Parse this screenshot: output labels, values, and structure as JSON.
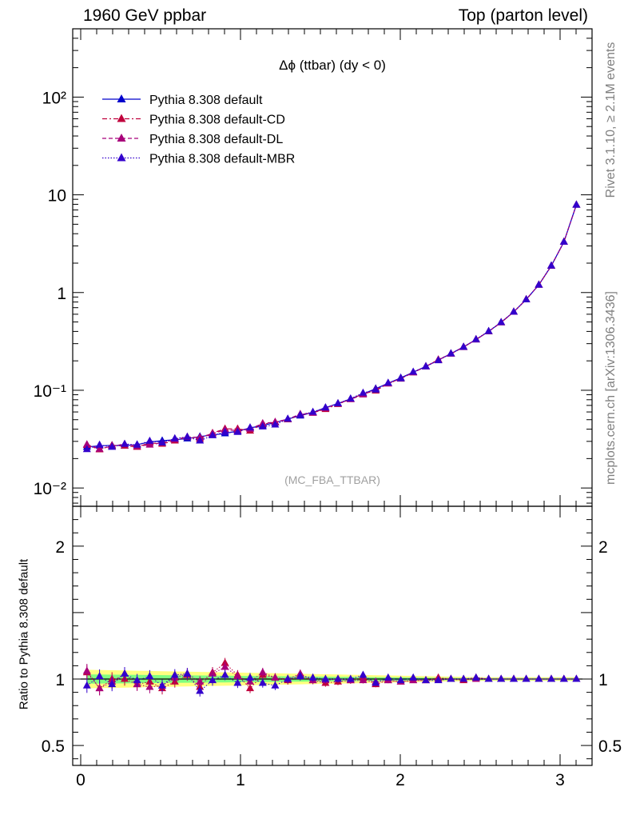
{
  "header": {
    "left": "1960 GeV ppbar",
    "right": "Top (parton level)"
  },
  "side": {
    "rivet": "Rivet 3.1.10, ≥ 2.1M events",
    "mcplots": "mcplots.cern.ch [arXiv:1306.3436]"
  },
  "ratio_ylabel": "Ratio to Pythia 8.308 default",
  "colors": {
    "default": "#0000cc",
    "cd": "#c0003c",
    "dl": "#a8007a",
    "mbr": "#3300cc",
    "band_outer": "#ffff80",
    "band_inner": "#80ff80"
  },
  "chart_data": [
    {
      "type": "line",
      "title": "Δϕ (ttbar) (dy < 0)",
      "watermark": "(MC_FBA_TTBAR)",
      "yscale": "log",
      "xlim": [
        -0.05,
        3.2
      ],
      "ylim": [
        0.0065,
        500
      ],
      "yticks": [
        {
          "value": 0.01,
          "label": "10⁻²"
        },
        {
          "value": 0.1,
          "label": "10⁻¹"
        },
        {
          "value": 1,
          "label": "1"
        },
        {
          "value": 10,
          "label": "10"
        },
        {
          "value": 100,
          "label": "10²"
        }
      ],
      "legend_position": "top-left",
      "x": [
        0.039,
        0.118,
        0.196,
        0.275,
        0.353,
        0.432,
        0.51,
        0.589,
        0.667,
        0.746,
        0.825,
        0.903,
        0.982,
        1.06,
        1.139,
        1.217,
        1.296,
        1.374,
        1.453,
        1.532,
        1.61,
        1.689,
        1.767,
        1.846,
        1.924,
        2.003,
        2.081,
        2.16,
        2.238,
        2.317,
        2.396,
        2.474,
        2.553,
        2.631,
        2.71,
        2.788,
        2.867,
        2.945,
        3.024,
        3.102
      ],
      "series": [
        {
          "name": "Pythia 8.308 default",
          "color_key": "default",
          "line": "solid",
          "values": [
            0.0263,
            0.027,
            0.0273,
            0.0271,
            0.0278,
            0.0296,
            0.0305,
            0.0312,
            0.032,
            0.0336,
            0.0349,
            0.0361,
            0.0383,
            0.0411,
            0.0437,
            0.0467,
            0.0508,
            0.0549,
            0.0594,
            0.0663,
            0.0734,
            0.0817,
            0.0915,
            0.104,
            0.118,
            0.134,
            0.153,
            0.176,
            0.204,
            0.237,
            0.278,
            0.33,
            0.401,
            0.496,
            0.635,
            0.85,
            1.2,
            1.88,
            3.3,
            7.9
          ]
        },
        {
          "name": "Pythia 8.308 default-CD",
          "color_key": "cd",
          "line": "dashdot",
          "values": [
            0.0275,
            0.0248,
            0.0272,
            0.027,
            0.0263,
            0.0289,
            0.0283,
            0.0305,
            0.0331,
            0.0317,
            0.0365,
            0.0403,
            0.0403,
            0.0385,
            0.0451,
            0.047,
            0.0502,
            0.056,
            0.059,
            0.064,
            0.072,
            0.081,
            0.092,
            0.099,
            0.117,
            0.131,
            0.152,
            0.175,
            0.206,
            0.237,
            0.276,
            0.332,
            0.399,
            0.494,
            0.635,
            0.848,
            1.2,
            1.87,
            3.3,
            7.89
          ]
        },
        {
          "name": "Pythia 8.308 default-DL",
          "color_key": "dl",
          "line": "dashed",
          "values": [
            0.0279,
            0.0251,
            0.0268,
            0.0281,
            0.0268,
            0.0277,
            0.0291,
            0.0314,
            0.0333,
            0.0329,
            0.0361,
            0.0392,
            0.0389,
            0.0402,
            0.0458,
            0.0473,
            0.0506,
            0.0571,
            0.0585,
            0.0657,
            0.073,
            0.0808,
            0.0903,
            0.102,
            0.117,
            0.132,
            0.152,
            0.175,
            0.204,
            0.236,
            0.278,
            0.33,
            0.4,
            0.495,
            0.634,
            0.852,
            1.2,
            1.88,
            3.3,
            7.91
          ]
        },
        {
          "name": "Pythia 8.308 default-MBR",
          "color_key": "mbr",
          "line": "dotted",
          "values": [
            0.0249,
            0.0276,
            0.0263,
            0.0282,
            0.0276,
            0.0303,
            0.0291,
            0.0321,
            0.0333,
            0.0305,
            0.0345,
            0.0372,
            0.0373,
            0.0415,
            0.0425,
            0.0444,
            0.0509,
            0.0559,
            0.06,
            0.0665,
            0.0732,
            0.082,
            0.094,
            0.101,
            0.119,
            0.132,
            0.154,
            0.175,
            0.202,
            0.238,
            0.277,
            0.332,
            0.402,
            0.496,
            0.635,
            0.848,
            1.2,
            1.88,
            3.3,
            7.9
          ]
        }
      ]
    },
    {
      "type": "line",
      "ylabel": "Ratio to Pythia 8.308 default",
      "xlim": [
        -0.05,
        3.2
      ],
      "ylim": [
        0.35,
        2.3
      ],
      "xticks": [
        0,
        1,
        2,
        3
      ],
      "yticks": [
        0.5,
        1,
        2
      ],
      "band": {
        "outer": 0.07,
        "inner": 0.035
      },
      "series": [
        {
          "name": "Pythia 8.308 default-CD",
          "color_key": "cd",
          "values": [
            1.05,
            0.93,
            1.0,
            1.0,
            0.96,
            0.98,
            0.93,
            0.98,
            1.03,
            0.94,
            1.05,
            1.12,
            1.03,
            0.93,
            1.03,
            1.01,
            0.99,
            1.02,
            0.99,
            0.97,
            0.98,
            0.99,
            1.01,
            0.96,
            0.99,
            0.98,
            0.99,
            0.99,
            1.01,
            1.0,
            0.99,
            1.01,
            1.0,
            1.0,
            1.0,
            1.0,
            1.0,
            1.0,
            1.0,
            1.0
          ]
        },
        {
          "name": "Pythia 8.308 default-DL",
          "color_key": "dl",
          "values": [
            1.06,
            0.93,
            0.98,
            1.04,
            0.96,
            0.94,
            0.95,
            1.01,
            1.04,
            0.98,
            1.04,
            1.09,
            1.02,
            0.98,
            1.05,
            1.01,
            1.0,
            1.04,
            0.99,
            0.99,
            1.0,
            0.99,
            0.99,
            0.98,
            0.99,
            0.98,
            0.99,
            0.99,
            1.0,
            1.0,
            1.0,
            1.0,
            1.0,
            1.0,
            1.0,
            1.0,
            1.0,
            1.0,
            1.0,
            1.0
          ]
        },
        {
          "name": "Pythia 8.308 default-MBR",
          "color_key": "mbr",
          "values": [
            0.95,
            1.02,
            0.96,
            1.04,
            0.99,
            1.02,
            0.95,
            1.03,
            1.04,
            0.91,
            0.99,
            1.03,
            0.97,
            1.01,
            0.97,
            0.95,
            1.0,
            1.02,
            1.01,
            1.0,
            1.0,
            1.0,
            1.03,
            0.97,
            1.01,
            0.99,
            1.01,
            0.99,
            0.99,
            1.0,
            1.0,
            1.01,
            1.0,
            1.0,
            1.0,
            1.0,
            1.0,
            1.0,
            1.0,
            1.0
          ]
        }
      ]
    }
  ]
}
